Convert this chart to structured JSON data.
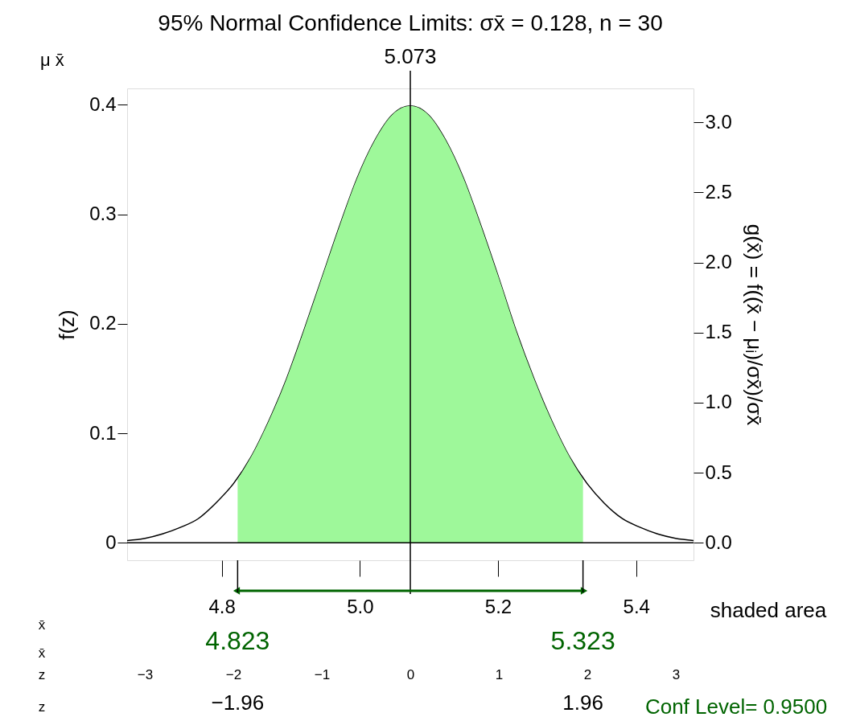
{
  "chart_data": {
    "type": "line",
    "title": "95%  Normal Confidence Limits:  σx̄ = 0.128, n = 30",
    "ylabel": "f(z)",
    "y2label": "g(x̄) = f((x̄ − μᵢ)/σx̄)/σx̄",
    "series": [
      {
        "color": "#000000",
        "x": [
          4.663,
          4.689,
          4.714,
          4.74,
          4.766,
          4.791,
          4.817,
          4.843,
          4.868,
          4.894,
          4.919,
          4.945,
          4.971,
          4.996,
          5.022,
          5.047,
          5.073,
          5.099,
          5.124,
          5.15,
          5.175,
          5.201,
          5.226,
          5.252,
          5.278,
          5.303,
          5.329,
          5.354,
          5.38,
          5.406,
          5.431,
          5.457,
          5.483
        ],
        "values": [
          0.002,
          0.004,
          0.008,
          0.014,
          0.022,
          0.036,
          0.054,
          0.079,
          0.111,
          0.15,
          0.194,
          0.242,
          0.29,
          0.333,
          0.368,
          0.391,
          0.399,
          0.391,
          0.368,
          0.333,
          0.29,
          0.242,
          0.194,
          0.15,
          0.111,
          0.079,
          0.054,
          0.036,
          0.022,
          0.014,
          0.008,
          0.004,
          0.002
        ]
      },
      {
        "type": "area",
        "color": "#9ef89a",
        "x": [
          4.823,
          4.843,
          4.868,
          4.894,
          4.919,
          4.945,
          4.971,
          4.996,
          5.022,
          5.047,
          5.073,
          5.099,
          5.124,
          5.15,
          5.175,
          5.201,
          5.226,
          5.252,
          5.278,
          5.303,
          5.323
        ],
        "values": [
          0.058,
          0.079,
          0.111,
          0.15,
          0.194,
          0.242,
          0.29,
          0.333,
          0.368,
          0.391,
          0.399,
          0.391,
          0.368,
          0.333,
          0.29,
          0.242,
          0.194,
          0.15,
          0.111,
          0.079,
          0.058
        ]
      }
    ],
    "xlim": [
      4.663,
      5.483
    ],
    "xticks": [
      4.8,
      {
        "value": 5.0,
        "label": "5.0"
      },
      5.2,
      5.4
    ],
    "ylim": [
      -0.016,
      0.415
    ],
    "yticks": [
      0,
      0.1,
      0.2,
      0.3,
      0.4
    ],
    "y2lim": [
      -0.125,
      3.242
    ],
    "y2ticks": [
      {
        "value": 0,
        "label": "0.0"
      },
      0.5,
      {
        "value": 1,
        "label": "1.0"
      },
      1.5,
      {
        "value": 2,
        "label": "2.0"
      },
      2.5,
      {
        "value": 3,
        "label": "3.0"
      }
    ],
    "x2lim": [
      -3.2,
      3.2
    ],
    "x2ticks": [
      {
        "value": -3,
        "label": "−3"
      },
      {
        "value": -2,
        "label": "−2"
      },
      {
        "value": -1,
        "label": "−1"
      },
      0,
      1,
      2,
      3
    ],
    "ref_lines": [
      {
        "axis": "x",
        "value": 5.073,
        "label": "5.073"
      },
      {
        "axis": "y",
        "value": 0
      }
    ],
    "annotations": [
      "μ  x̄",
      "x̄",
      "x̄",
      "z",
      "z",
      "shaded area",
      "4.823",
      "5.323",
      "−1.96",
      "1.96",
      "Conf Level= 0.9500"
    ],
    "grid": false
  }
}
